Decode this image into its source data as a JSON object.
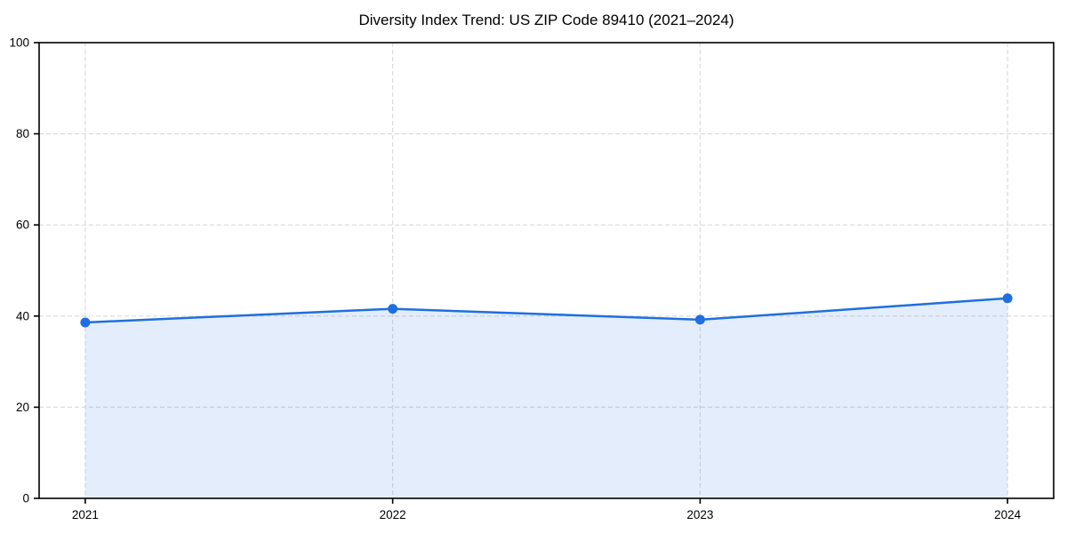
{
  "chart_data": {
    "type": "area",
    "title": "Diversity Index Trend: US ZIP Code 89410 (2021–2024)",
    "x": [
      2021,
      2022,
      2023,
      2024
    ],
    "xticklabels": [
      "2021",
      "2022",
      "2023",
      "2024"
    ],
    "series": [
      {
        "name": "Diversity Index",
        "values": [
          38.6,
          41.6,
          39.2,
          43.9
        ]
      }
    ],
    "xlabel": "",
    "ylabel": "",
    "ylim": [
      0,
      100
    ],
    "yticks": [
      0,
      20,
      40,
      60,
      80,
      100
    ],
    "grid": true,
    "grid_style": "dashed",
    "legend": null,
    "marker": "circle"
  },
  "colors": {
    "line": "#1f6fe0",
    "marker": "#1f6fe0",
    "fill": "#1f6fe0",
    "fill_opacity": 0.12,
    "grid": "#dcdcdc",
    "axis": "#000000",
    "tick_text": "#000000",
    "background": "#ffffff"
  }
}
